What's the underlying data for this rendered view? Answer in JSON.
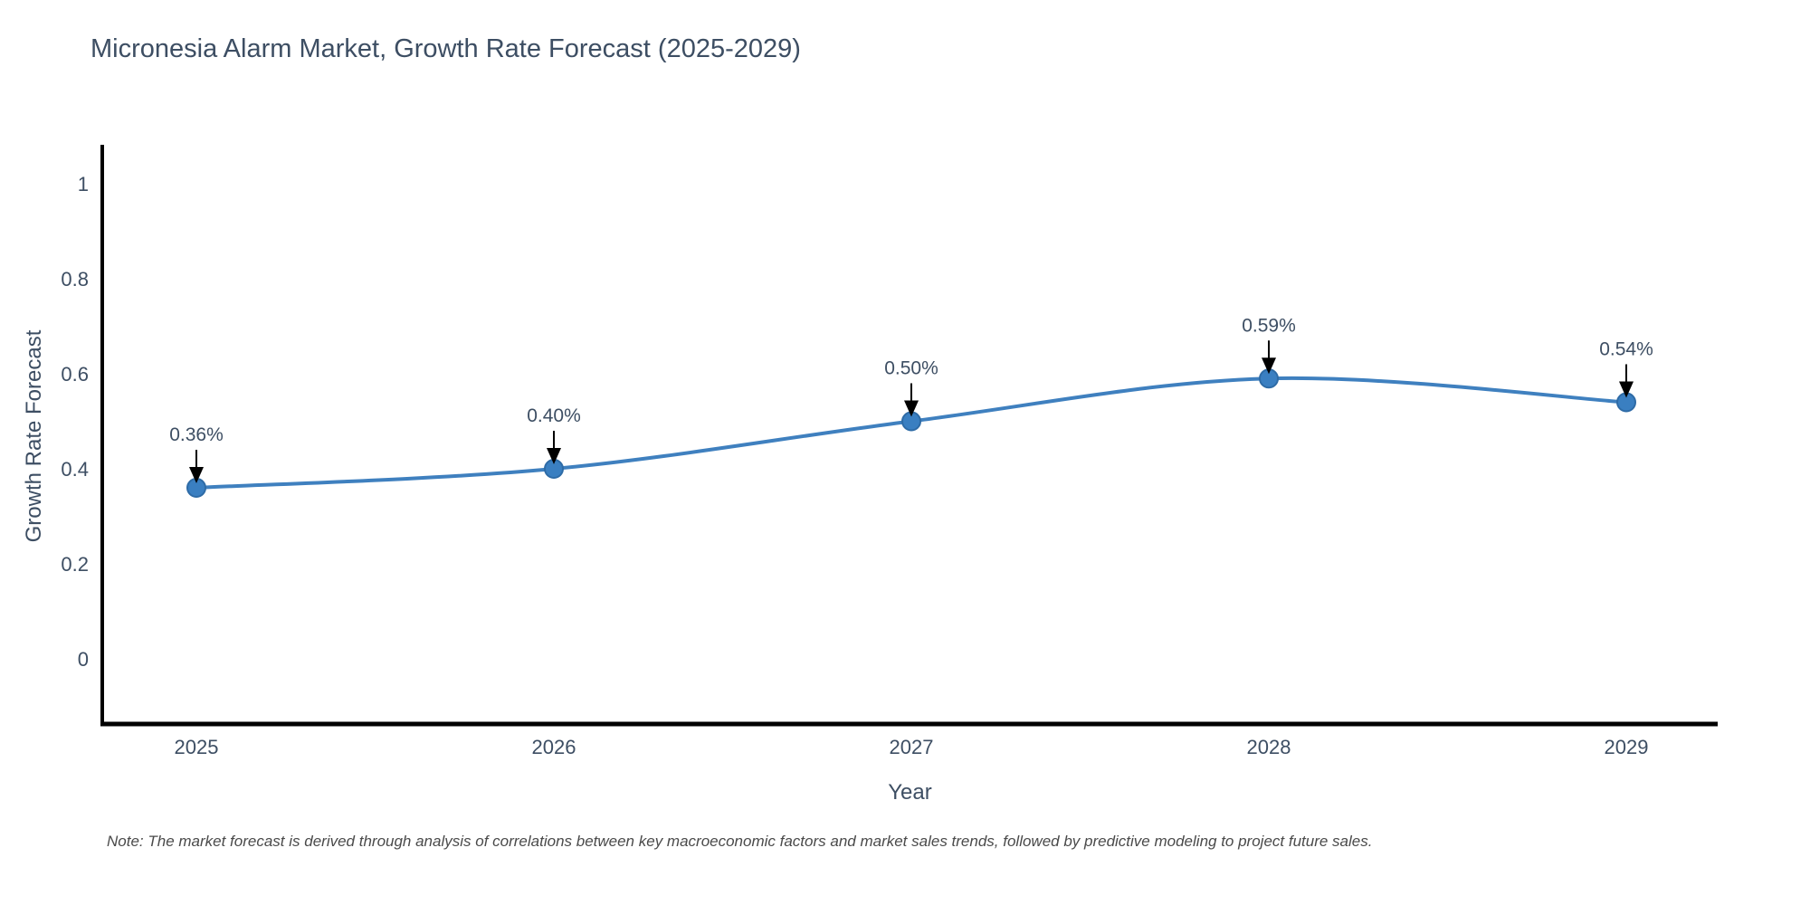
{
  "chart": {
    "title": "Micronesia Alarm Market, Growth Rate Forecast (2025-2029)",
    "xlabel": "Year",
    "ylabel": "Growth Rate Forecast",
    "note": "Note: The market forecast is derived through analysis of correlations between key macroeconomic factors and market sales trends, followed by predictive modeling to project future sales."
  },
  "chart_data": {
    "type": "line",
    "title": "Micronesia Alarm Market, Growth Rate Forecast (2025-2029)",
    "xlabel": "Year",
    "ylabel": "Growth Rate Forecast",
    "categories": [
      "2025",
      "2026",
      "2027",
      "2028",
      "2029"
    ],
    "x": [
      2025,
      2026,
      2027,
      2028,
      2029
    ],
    "values": [
      0.36,
      0.4,
      0.5,
      0.59,
      0.54
    ],
    "annotations": [
      "0.36%",
      "0.40%",
      "0.50%",
      "0.59%",
      "0.54%"
    ],
    "line_shape": "spline",
    "markers": true,
    "grid": false,
    "legend_position": "none",
    "ylim": [
      -0.14,
      1.08
    ],
    "yticks": [
      0,
      0.2,
      0.4,
      0.6,
      0.8,
      1
    ],
    "ytick_labels": [
      "0",
      "0.2",
      "0.4",
      "0.6",
      "0.8",
      "1"
    ],
    "colors": {
      "line": "#3f80bf",
      "marker_fill": "#3a7fc1",
      "marker_edge": "#2e6ba6",
      "axis": "#000000",
      "tick_text": "#3d4e63",
      "annotation_text": "#3d4e63",
      "annotation_arrow": "#000000"
    }
  }
}
